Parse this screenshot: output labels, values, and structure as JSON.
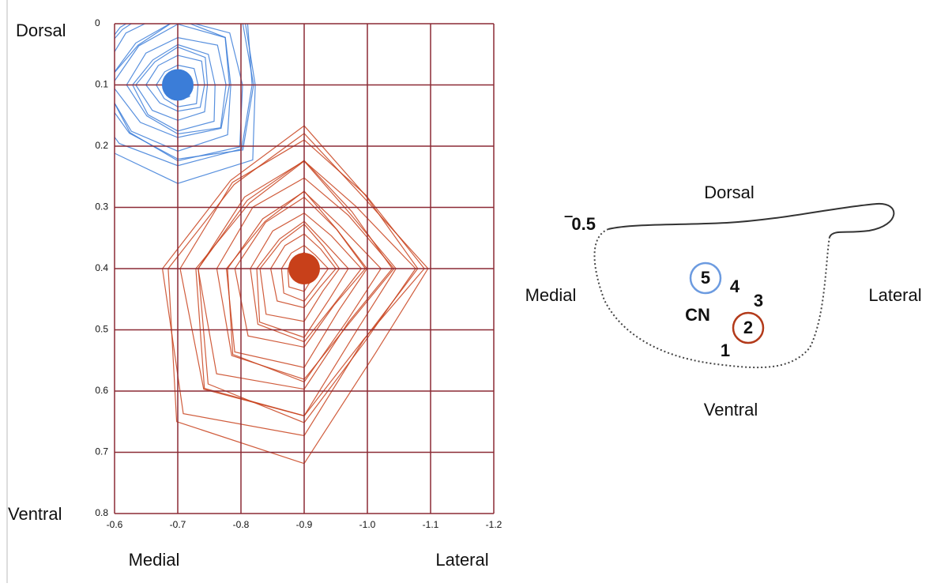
{
  "chart_data": {
    "type": "scatter",
    "y_top_label": "Dorsal",
    "y_bottom_label": "Ventral",
    "x_left_label": "Medial",
    "x_right_label": "Lateral",
    "xlim": [
      -0.6,
      -1.2
    ],
    "xticks": [
      -0.6,
      -0.7,
      -0.8,
      -0.9,
      {
        "value": -1,
        "label": "-1.0"
      },
      -1.1,
      -1.2
    ],
    "ylim": [
      0,
      0.8
    ],
    "yticks": [
      0,
      0.1,
      0.2,
      0.3,
      0.4,
      0.5,
      0.6,
      0.7,
      0.8
    ],
    "grid": true,
    "series": [
      {
        "color": "#3b7dd8",
        "x": [
          -0.7
        ],
        "values": [
          0.1
        ]
      },
      {
        "color": "#c8401a",
        "x": [
          -0.9
        ],
        "values": [
          0.4
        ]
      }
    ]
  },
  "diagram": {
    "top": "Dorsal",
    "bottom": "Ventral",
    "left": "Medial",
    "right": "Lateral",
    "depth": "‾0.5",
    "label": "CN",
    "sites": [
      "5",
      "4",
      "3",
      "2",
      "1"
    ]
  }
}
